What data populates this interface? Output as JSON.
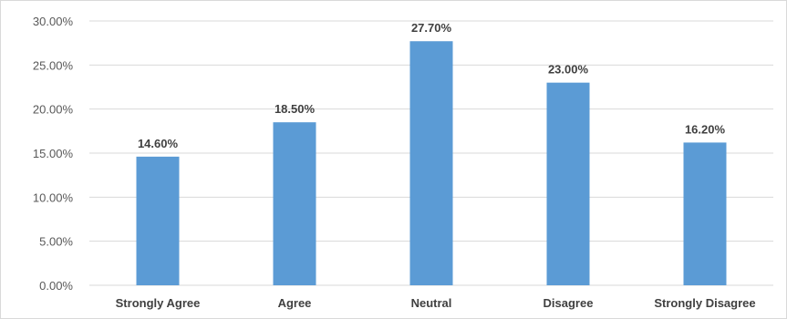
{
  "chart_data": {
    "type": "bar",
    "title": "",
    "xlabel": "",
    "ylabel": "",
    "categories": [
      "Strongly Agree",
      "Agree",
      "Neutral",
      "Disagree",
      "Strongly Disagree"
    ],
    "values": [
      14.6,
      18.5,
      27.7,
      23.0,
      16.2
    ],
    "data_labels": [
      "14.60%",
      "18.50%",
      "27.70%",
      "23.00%",
      "16.20%"
    ],
    "ylim": [
      0,
      30
    ],
    "yticks": [
      0,
      5,
      10,
      15,
      20,
      25,
      30
    ],
    "ytick_labels": [
      "0.00%",
      "5.00%",
      "10.00%",
      "15.00%",
      "20.00%",
      "25.00%",
      "30.00%"
    ],
    "grid": true,
    "legend": "none",
    "bar_color": "#5b9bd5",
    "grid_color": "#d9d9d9"
  }
}
